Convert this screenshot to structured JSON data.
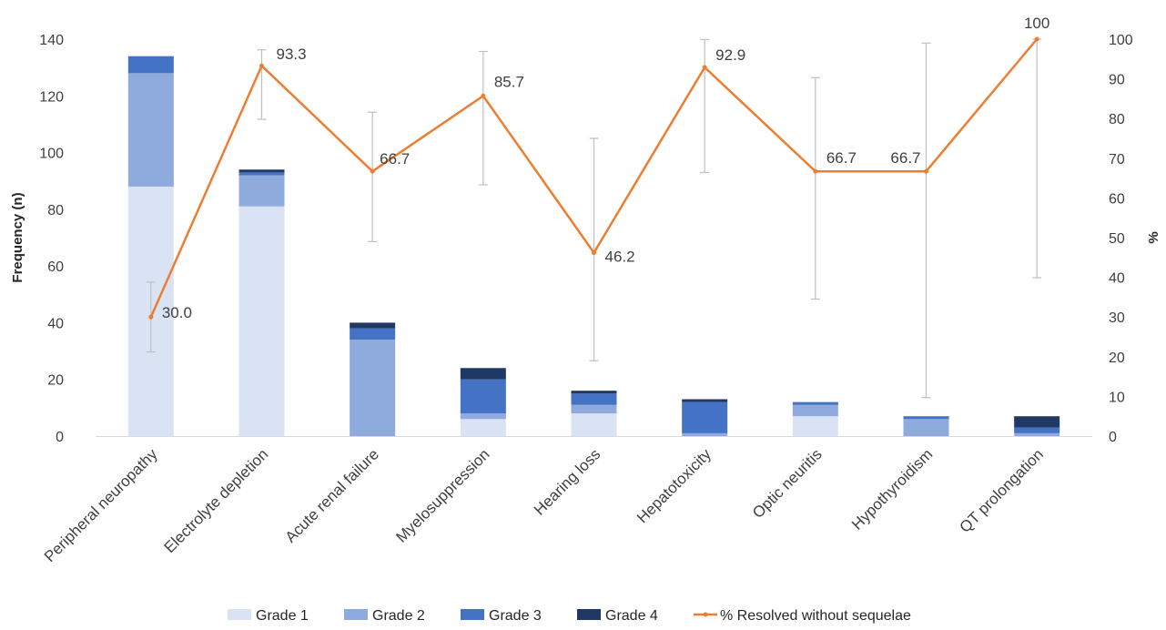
{
  "chart_data": {
    "type": "bar",
    "subtype": "stacked-bar-with-line-secondary-axis",
    "categories": [
      "Peripheral neuropathy",
      "Electrolyte depletion",
      "Acute renal failure",
      "Myelosuppression",
      "Hearing loss",
      "Hepatotoxicity",
      "Optic neuritis",
      "Hypothyroidism",
      "QT prolongation"
    ],
    "ylabel": "Frequency (n)",
    "y2label": "%",
    "ylim": [
      0,
      140
    ],
    "y2lim": [
      0,
      100
    ],
    "yticks": [
      0,
      20,
      40,
      60,
      80,
      100,
      120,
      140
    ],
    "y2ticks": [
      0,
      10,
      20,
      30,
      40,
      50,
      60,
      70,
      80,
      90,
      100
    ],
    "grid": false,
    "legend_position": "bottom",
    "series": [
      {
        "name": "Grade 1",
        "color": "#dae3f3",
        "values": [
          88,
          81,
          0,
          6,
          8,
          0,
          7,
          0,
          0
        ]
      },
      {
        "name": "Grade 2",
        "color": "#8faadc",
        "values": [
          40,
          11,
          34,
          2,
          3,
          1,
          4,
          6,
          1
        ]
      },
      {
        "name": "Grade 3",
        "color": "#4472c4",
        "values": [
          6,
          1,
          4,
          12,
          4,
          11,
          1,
          1,
          2
        ]
      },
      {
        "name": "Grade 4",
        "color": "#1f3864",
        "values": [
          0,
          1,
          2,
          4,
          1,
          1,
          0,
          0,
          4
        ]
      }
    ],
    "line_series": {
      "name": "% Resolved without sequelae",
      "color": "#ed7d31",
      "axis": "secondary",
      "values": [
        30.0,
        93.3,
        66.7,
        85.7,
        46.2,
        92.9,
        66.7,
        66.7,
        100
      ],
      "labels": [
        "30.0",
        "93.3",
        "66.7",
        "85.7",
        "46.2",
        "92.9",
        "66.7",
        "66.7",
        "100"
      ],
      "error_low": [
        21.2,
        79.8,
        49.0,
        63.3,
        19.0,
        66.4,
        34.5,
        9.7,
        39.9
      ],
      "error_high": [
        38.8,
        97.3,
        81.6,
        96.9,
        75.0,
        99.9,
        90.3,
        99.0,
        100
      ]
    }
  }
}
